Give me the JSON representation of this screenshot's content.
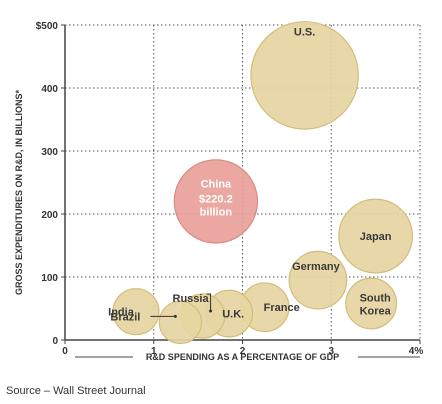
{
  "chart_data": {
    "type": "scatter",
    "title": "",
    "xlabel": "R&D SPENDING AS A PERCENTAGE OF GDP",
    "ylabel": "GROSS EXPENDITURES ON R&D, IN BILLIONS*",
    "xlim": [
      0,
      4
    ],
    "ylim": [
      0,
      500
    ],
    "x_ticks": [
      {
        "value": 0,
        "label": "0"
      },
      {
        "value": 1,
        "label": "1"
      },
      {
        "value": 2,
        "label": "2"
      },
      {
        "value": 3,
        "label": "3"
      },
      {
        "value": 4,
        "label": "4%"
      }
    ],
    "y_ticks": [
      {
        "value": 0,
        "label": "0"
      },
      {
        "value": 100,
        "label": "100"
      },
      {
        "value": 200,
        "label": "200"
      },
      {
        "value": 300,
        "label": "300"
      },
      {
        "value": 400,
        "label": "400"
      },
      {
        "value": 500,
        "label": "$500"
      }
    ],
    "grid": true,
    "points": [
      {
        "label": "U.S.",
        "x": 2.7,
        "y": 420,
        "r": 395
      },
      {
        "label": "China",
        "value_label": "$220.2",
        "unit_label": "billion",
        "x": 1.7,
        "y": 220,
        "r": 220,
        "highlight": true
      },
      {
        "label": "Japan",
        "x": 3.5,
        "y": 165,
        "r": 165
      },
      {
        "label": "Germany",
        "x": 2.85,
        "y": 95,
        "r": 90
      },
      {
        "label": "South Korea",
        "x": 3.45,
        "y": 58,
        "r": 65
      },
      {
        "label": "France",
        "x": 2.25,
        "y": 52,
        "r": 58
      },
      {
        "label": "U.K.",
        "x": 1.85,
        "y": 42,
        "r": 52
      },
      {
        "label": "Russia",
        "x": 1.55,
        "y": 38,
        "r": 45
      },
      {
        "label": "India",
        "x": 0.8,
        "y": 45,
        "r": 50
      },
      {
        "label": "Brazil",
        "x": 1.3,
        "y": 28,
        "r": 40
      }
    ],
    "colors": {
      "bubble_fill": "#e6d5a2",
      "bubble_stroke": "#d2bd7a",
      "highlight_fill": "#e9a099",
      "highlight_stroke": "#d98a82",
      "axis": "#444444",
      "grid": "#555555"
    }
  },
  "footer": {
    "source": "Source – Wall Street Journal"
  }
}
